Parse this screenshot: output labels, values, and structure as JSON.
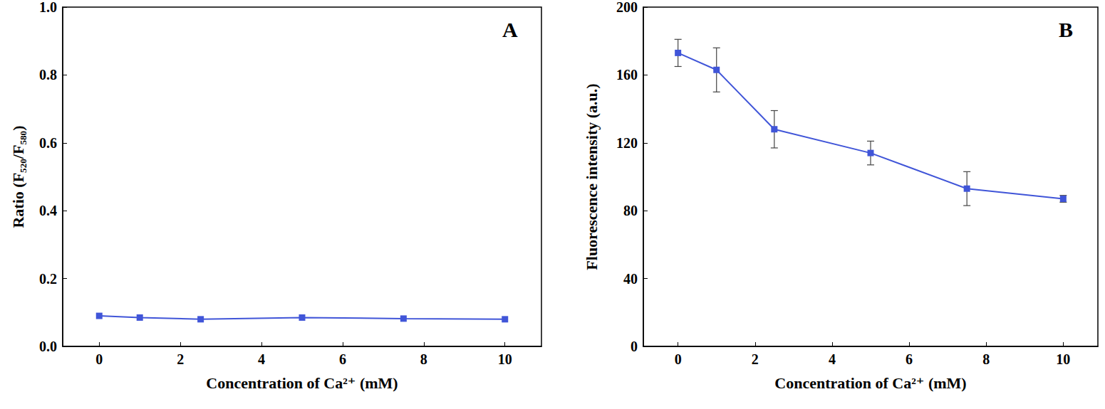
{
  "chart_data": [
    {
      "type": "line",
      "annotation": "A",
      "x_label": "Concentration of Ca²⁺ (mM)",
      "y_label": "Ratio (F₅₂₀/F₅₈₀)",
      "x": [
        0,
        1,
        2.5,
        5,
        7.5,
        10
      ],
      "values": [
        0.09,
        0.085,
        0.08,
        0.085,
        0.082,
        0.08
      ],
      "color": "#4055d8",
      "marker": "square",
      "grid": false,
      "xlim": [
        -0.9,
        10.9
      ],
      "xticks": [
        0,
        2,
        4,
        6,
        8,
        10
      ],
      "ylim": [
        0,
        1
      ],
      "yticks": [
        {
          "value": 0,
          "label": "0.0"
        },
        {
          "value": 0.2,
          "label": "0.2"
        },
        {
          "value": 0.4,
          "label": "0.4"
        },
        {
          "value": 0.6,
          "label": "0.6"
        },
        {
          "value": 0.8,
          "label": "0.8"
        },
        {
          "value": 1,
          "label": "1.0"
        }
      ]
    },
    {
      "type": "line",
      "annotation": "B",
      "x_label": "Concentration of Ca²⁺ (mM)",
      "y_label": "Fluorescence intensity (a.u.)",
      "x": [
        0,
        1,
        2.5,
        5,
        7.5,
        10
      ],
      "values": [
        173,
        163,
        128,
        114,
        93,
        87
      ],
      "errors": [
        8,
        13,
        11,
        7,
        10,
        2
      ],
      "color": "#4055d8",
      "marker": "square",
      "grid": false,
      "xlim": [
        -0.9,
        10.9
      ],
      "xticks": [
        0,
        2,
        4,
        6,
        8,
        10
      ],
      "ylim": [
        0,
        200
      ],
      "yticks": [
        0,
        40,
        80,
        120,
        160,
        200
      ]
    }
  ]
}
